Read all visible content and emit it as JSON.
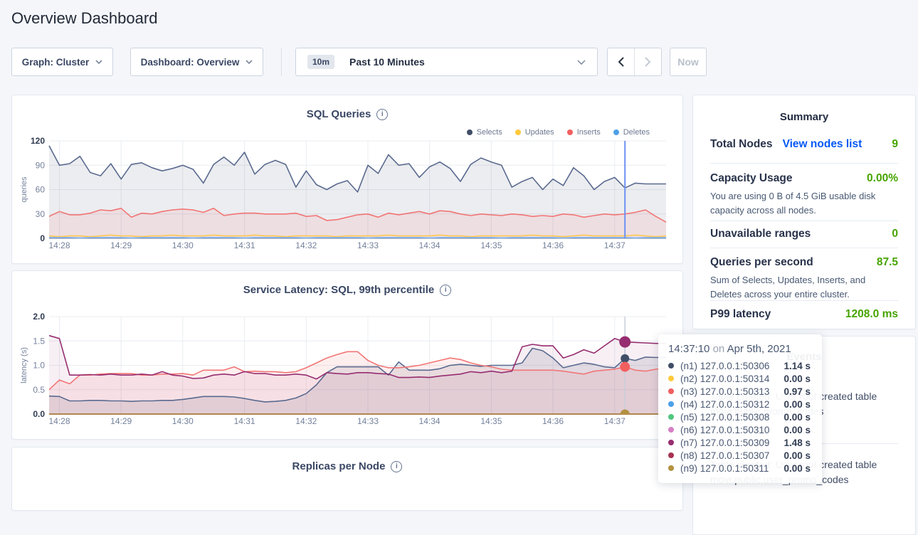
{
  "page": {
    "title": "Overview Dashboard"
  },
  "toolbar": {
    "graph_dropdown": "Graph: Cluster",
    "dashboard_dropdown": "Dashboard: Overview",
    "time_badge": "10m",
    "time_range": "Past 10 Minutes",
    "now_label": "Now"
  },
  "chart_data": [
    {
      "type": "line",
      "title": "SQL Queries",
      "ylabel": "queries",
      "ylim": [
        0,
        120
      ],
      "yticks": [
        0,
        30,
        60,
        90,
        120
      ],
      "ytick_labels": [
        "0",
        "30",
        "60",
        "90",
        "120"
      ],
      "xtick_labels": [
        "14:28",
        "14:29",
        "14:30",
        "14:31",
        "14:32",
        "14:33",
        "14:34",
        "14:35",
        "14:36",
        "14:37"
      ],
      "points": 61,
      "legend_position": "top-right",
      "grid": true,
      "series": [
        {
          "name": "Selects",
          "color": "#414e68",
          "line": "#5a6a8f",
          "fill_opacity": 0.1,
          "values": [
            114,
            90,
            92,
            101,
            81,
            77,
            92,
            73,
            91,
            93,
            87,
            83,
            86,
            90,
            85,
            68,
            91,
            100,
            90,
            106,
            79,
            91,
            96,
            91,
            63,
            83,
            66,
            60,
            67,
            71,
            57,
            90,
            80,
            103,
            90,
            92,
            75,
            88,
            94,
            86,
            70,
            91,
            99,
            94,
            90,
            63,
            70,
            75,
            60,
            73,
            65,
            87,
            77,
            60,
            70,
            75,
            62,
            68,
            67,
            67,
            67
          ]
        },
        {
          "name": "Updates",
          "color": "#ffc93d",
          "line": "#fdc751",
          "fill_opacity": 0,
          "values": [
            3,
            2,
            3,
            3,
            2,
            3,
            4,
            3,
            3,
            2,
            3,
            3,
            4,
            3,
            3,
            3,
            4,
            3,
            3,
            3,
            4,
            3,
            3,
            2,
            3,
            3,
            3,
            3,
            2,
            3,
            3,
            3,
            3,
            4,
            3,
            3,
            3,
            3,
            4,
            3,
            3,
            2,
            3,
            3,
            3,
            3,
            3,
            4,
            3,
            3,
            2,
            3,
            4,
            3,
            3,
            3,
            3,
            4,
            3,
            2,
            3
          ]
        },
        {
          "name": "Inserts",
          "color": "#f25f5f",
          "line": "#f27575",
          "fill_opacity": 0.1,
          "values": [
            27,
            33,
            29,
            29,
            31,
            35,
            34,
            37,
            26,
            31,
            30,
            33,
            35,
            36,
            35,
            32,
            37,
            28,
            30,
            31,
            31,
            30,
            30,
            30,
            31,
            27,
            28,
            22,
            23,
            26,
            29,
            30,
            26,
            31,
            29,
            31,
            33,
            30,
            34,
            33,
            30,
            28,
            30,
            29,
            28,
            30,
            29,
            27,
            28,
            27,
            30,
            29,
            26,
            28,
            30,
            29,
            30,
            32,
            35,
            27,
            20
          ]
        },
        {
          "name": "Deletes",
          "color": "#4da0e8",
          "line": "#7fb3ef",
          "fill_opacity": 0,
          "values": [
            1,
            1,
            1,
            0.5,
            1,
            1,
            1,
            1,
            0.5,
            1,
            1,
            1,
            1,
            1,
            0.5,
            1,
            1,
            1,
            1,
            0.5,
            1,
            1,
            1,
            1,
            1,
            0.5,
            1,
            1,
            1,
            1,
            1,
            0.5,
            1,
            1,
            1,
            1,
            1,
            0.5,
            1,
            1,
            1,
            1,
            1,
            1,
            0.5,
            1,
            1,
            1,
            1,
            1,
            0.5,
            1,
            1,
            1,
            1,
            1,
            1,
            0.5,
            1,
            1,
            1
          ]
        }
      ],
      "crosshair": {
        "time": "14:37:10",
        "index": 56,
        "color": "#6d92f2",
        "width": 2
      }
    },
    {
      "type": "line",
      "title": "Service Latency: SQL, 99th percentile",
      "ylabel": "latency (s)",
      "ylim": [
        0,
        2.0
      ],
      "yticks": [
        0,
        0.5,
        1.0,
        1.5,
        2.0
      ],
      "ytick_labels": [
        "0.0",
        "0.5",
        "1.0",
        "1.5",
        "2.0"
      ],
      "xtick_labels": [
        "14:28",
        "14:29",
        "14:30",
        "14:31",
        "14:32",
        "14:33",
        "14:34",
        "14:35",
        "14:36",
        "14:37"
      ],
      "points": 61,
      "grid": true,
      "series": [
        {
          "name": "(n1) 127.0.0.1:50306",
          "color": "#414e68",
          "line": "#5a6a8f",
          "fill_opacity": 0.12,
          "values": [
            0.37,
            0.36,
            0.27,
            0.27,
            0.28,
            0.28,
            0.27,
            0.27,
            0.26,
            0.27,
            0.27,
            0.28,
            0.28,
            0.3,
            0.33,
            0.36,
            0.36,
            0.36,
            0.35,
            0.32,
            0.28,
            0.25,
            0.26,
            0.28,
            0.33,
            0.42,
            0.6,
            0.85,
            0.97,
            0.97,
            0.97,
            0.97,
            0.97,
            0.8,
            1.07,
            0.9,
            0.9,
            0.9,
            0.93,
            1.0,
            1.02,
            1.0,
            0.98,
            1.0,
            1.0,
            1.0,
            1.05,
            1.35,
            1.3,
            1.15,
            0.95,
            1.0,
            1.05,
            1.02,
            0.97,
            0.95,
            1.14,
            1.1,
            1.17,
            1.16,
            1.17
          ]
        },
        {
          "name": "(n2) 127.0.0.1:50314",
          "color": "#ffc93d",
          "line": "#ffc93d",
          "fill_opacity": 0,
          "const": 0
        },
        {
          "name": "(n3) 127.0.0.1:50313",
          "color": "#f25f5f",
          "line": "#f27575",
          "fill_opacity": 0.1,
          "values": [
            0.5,
            0.7,
            0.62,
            0.8,
            0.8,
            0.82,
            0.83,
            0.83,
            0.83,
            0.8,
            0.8,
            0.82,
            0.82,
            0.83,
            0.8,
            0.9,
            0.9,
            0.9,
            0.97,
            0.87,
            0.88,
            0.87,
            0.87,
            0.85,
            0.87,
            0.95,
            1.05,
            1.15,
            1.22,
            1.28,
            1.28,
            1.1,
            1.0,
            0.95,
            0.95,
            0.97,
            1.0,
            1.05,
            1.1,
            1.15,
            1.12,
            1.05,
            1.0,
            0.97,
            0.92,
            0.9,
            0.9,
            0.9,
            0.9,
            0.9,
            0.88,
            0.85,
            0.82,
            0.88,
            0.9,
            0.92,
            0.97,
            0.9,
            0.88,
            0.92,
            0.95
          ]
        },
        {
          "name": "(n4) 127.0.0.1:50312",
          "color": "#4da0e8",
          "line": "#4da0e8",
          "fill_opacity": 0,
          "const": 0
        },
        {
          "name": "(n5) 127.0.0.1:50308",
          "color": "#51c67e",
          "line": "#51c67e",
          "fill_opacity": 0,
          "const": 0
        },
        {
          "name": "(n6) 127.0.0.1:50310",
          "color": "#d77fc4",
          "line": "#d77fc4",
          "fill_opacity": 0,
          "const": 0
        },
        {
          "name": "(n7) 127.0.0.1:50309",
          "color": "#962d70",
          "line": "#962d70",
          "fill_opacity": 0.08,
          "values": [
            1.61,
            1.55,
            0.8,
            0.8,
            0.81,
            0.8,
            0.82,
            0.8,
            0.8,
            0.82,
            0.8,
            0.87,
            0.8,
            0.78,
            0.73,
            0.74,
            0.8,
            0.82,
            0.8,
            0.87,
            0.83,
            0.83,
            0.8,
            0.8,
            0.82,
            0.8,
            0.72,
            0.85,
            0.83,
            0.82,
            0.85,
            0.85,
            0.83,
            0.82,
            0.75,
            0.75,
            0.76,
            0.75,
            0.78,
            0.8,
            0.82,
            0.87,
            0.85,
            0.88,
            0.85,
            0.88,
            1.38,
            1.43,
            1.4,
            1.4,
            1.15,
            1.22,
            1.32,
            1.25,
            1.4,
            1.55,
            1.48,
            1.47,
            1.46,
            1.45,
            1.45
          ]
        },
        {
          "name": "(n8) 127.0.0.1:50307",
          "color": "#a63250",
          "line": "#a63250",
          "fill_opacity": 0,
          "const": 0
        },
        {
          "name": "(n9) 127.0.0.1:50311",
          "color": "#b3913f",
          "line": "#b3913f",
          "fill_opacity": 0,
          "const": 0
        }
      ],
      "crosshair": {
        "time": "14:37:10",
        "index": 56,
        "color": "#c9cfd9",
        "width": 1.5,
        "dots": [
          {
            "series": "(n1) 127.0.0.1:50306",
            "value": 1.14,
            "r": 6
          },
          {
            "series": "(n3) 127.0.0.1:50313",
            "value": 0.97,
            "r": 7
          },
          {
            "series": "(n7) 127.0.0.1:50309",
            "value": 1.48,
            "r": 8
          },
          {
            "series": "(n9) 127.0.0.1:50311",
            "value": 0,
            "r": 6.5
          }
        ]
      }
    },
    {
      "type": "line",
      "title": "Replicas per Node",
      "partial": true
    }
  ],
  "summary": {
    "title": "Summary",
    "total_nodes_label": "Total Nodes",
    "view_nodes_link": "View nodes list",
    "total_nodes_value": "9",
    "capacity_label": "Capacity Usage",
    "capacity_value": "0.00%",
    "capacity_desc": "You are using 0 B of 4.5 GiB usable disk capacity across all nodes.",
    "unavailable_label": "Unavailable ranges",
    "unavailable_value": "0",
    "qps_label": "Queries per second",
    "qps_value": "87.5",
    "qps_desc": "Sum of Selects, Updates, Inserts, and Deletes across your entire cluster.",
    "p99_label": "P99 latency",
    "p99_value": "1208.0 ms",
    "accent_green": "#46a400",
    "link_blue": "#0458f4"
  },
  "events": {
    "title": "Events",
    "items": [
      {
        "line1": "Table created: User root created table",
        "line2": "movr.public.promo_codes"
      },
      {
        "line1": "Table created: User root created table",
        "line2": "movr.public.user_promo_codes"
      }
    ]
  },
  "tooltip": {
    "time": "14:37:10",
    "conj": "on",
    "date": "Apr 5th, 2021",
    "rows": [
      {
        "node": "(n1) 127.0.0.1:50306",
        "value": "1.14 s",
        "color": "#414e68"
      },
      {
        "node": "(n2) 127.0.0.1:50314",
        "value": "0.00 s",
        "color": "#ffc93d"
      },
      {
        "node": "(n3) 127.0.0.1:50313",
        "value": "0.97 s",
        "color": "#f25f5f"
      },
      {
        "node": "(n4) 127.0.0.1:50312",
        "value": "0.00 s",
        "color": "#4da0e8"
      },
      {
        "node": "(n5) 127.0.0.1:50308",
        "value": "0.00 s",
        "color": "#51c67e"
      },
      {
        "node": "(n6) 127.0.0.1:50310",
        "value": "0.00 s",
        "color": "#d77fc4"
      },
      {
        "node": "(n7) 127.0.0.1:50309",
        "value": "1.48 s",
        "color": "#962d70"
      },
      {
        "node": "(n8) 127.0.0.1:50307",
        "value": "0.00 s",
        "color": "#a63250"
      },
      {
        "node": "(n9) 127.0.0.1:50311",
        "value": "0.00 s",
        "color": "#b3913f"
      }
    ]
  }
}
